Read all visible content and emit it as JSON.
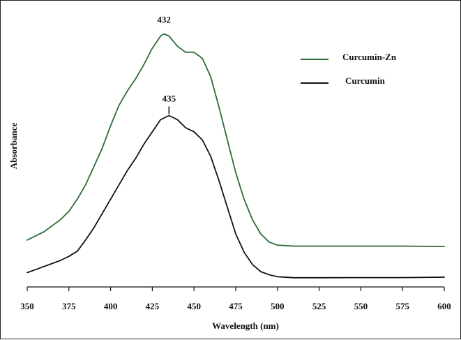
{
  "chart_data": {
    "type": "line",
    "xlabel": "Wavelength (nm)",
    "ylabel": "Absorbance",
    "xlim": [
      350,
      600
    ],
    "x_ticks": [
      350,
      375,
      400,
      425,
      450,
      475,
      500,
      525,
      550,
      575,
      600
    ],
    "y_ticks_shown": false,
    "grid": false,
    "legend_position": "top-right",
    "series": [
      {
        "name": "Curcumin-Zn",
        "color": "#2e6b35",
        "peak_label": "432",
        "points": [
          [
            350,
            0.18
          ],
          [
            355,
            0.2
          ],
          [
            360,
            0.22
          ],
          [
            365,
            0.25
          ],
          [
            370,
            0.28
          ],
          [
            375,
            0.32
          ],
          [
            380,
            0.38
          ],
          [
            385,
            0.45
          ],
          [
            390,
            0.54
          ],
          [
            395,
            0.63
          ],
          [
            400,
            0.74
          ],
          [
            405,
            0.84
          ],
          [
            410,
            0.91
          ],
          [
            415,
            0.97
          ],
          [
            420,
            1.04
          ],
          [
            425,
            1.12
          ],
          [
            430,
            1.18
          ],
          [
            432,
            1.19
          ],
          [
            435,
            1.18
          ],
          [
            440,
            1.13
          ],
          [
            445,
            1.1
          ],
          [
            450,
            1.1
          ],
          [
            455,
            1.07
          ],
          [
            460,
            0.98
          ],
          [
            465,
            0.83
          ],
          [
            470,
            0.67
          ],
          [
            475,
            0.51
          ],
          [
            480,
            0.38
          ],
          [
            485,
            0.28
          ],
          [
            490,
            0.21
          ],
          [
            495,
            0.17
          ],
          [
            500,
            0.155
          ],
          [
            510,
            0.15
          ],
          [
            525,
            0.15
          ],
          [
            550,
            0.15
          ],
          [
            575,
            0.15
          ],
          [
            600,
            0.148
          ]
        ]
      },
      {
        "name": "Curcumin",
        "color": "#111111",
        "peak_label": "435",
        "points": [
          [
            350,
            0.02
          ],
          [
            355,
            0.035
          ],
          [
            360,
            0.05
          ],
          [
            365,
            0.065
          ],
          [
            370,
            0.08
          ],
          [
            375,
            0.1
          ],
          [
            380,
            0.125
          ],
          [
            385,
            0.18
          ],
          [
            390,
            0.24
          ],
          [
            395,
            0.31
          ],
          [
            400,
            0.38
          ],
          [
            405,
            0.45
          ],
          [
            410,
            0.52
          ],
          [
            415,
            0.58
          ],
          [
            420,
            0.65
          ],
          [
            425,
            0.71
          ],
          [
            430,
            0.77
          ],
          [
            435,
            0.79
          ],
          [
            440,
            0.77
          ],
          [
            445,
            0.73
          ],
          [
            450,
            0.71
          ],
          [
            455,
            0.67
          ],
          [
            460,
            0.59
          ],
          [
            465,
            0.47
          ],
          [
            470,
            0.34
          ],
          [
            475,
            0.21
          ],
          [
            480,
            0.12
          ],
          [
            485,
            0.06
          ],
          [
            490,
            0.025
          ],
          [
            495,
            0.01
          ],
          [
            500,
            0.0
          ],
          [
            510,
            -0.005
          ],
          [
            525,
            -0.005
          ],
          [
            550,
            -0.004
          ],
          [
            575,
            -0.004
          ],
          [
            600,
            -0.002
          ]
        ]
      }
    ]
  }
}
